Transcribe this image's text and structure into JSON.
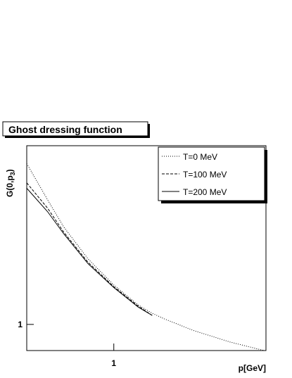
{
  "chart_data": {
    "type": "line",
    "title": "Ghost dressing function",
    "x_label": "p[GeV]",
    "y_label": {
      "main": "G(0,p",
      "sub": "3",
      "close": ")"
    },
    "x": [
      0.3,
      0.4,
      0.5,
      0.7,
      1,
      1.4,
      1.7,
      2,
      3,
      5,
      8
    ],
    "series": [
      {
        "name": "T=0 MeV",
        "color": "#000000",
        "dash": "1,2",
        "values": [
          3.95,
          2.9,
          2.3,
          1.75,
          1.4,
          1.18,
          1.1,
          1.05,
          0.95,
          0.86,
          0.8
        ]
      },
      {
        "name": "T=100 MeV",
        "color": "#000000",
        "dash": "4,2",
        "values": [
          3.35,
          2.7,
          2.2,
          1.7,
          1.38,
          1.17,
          1.08,
          null,
          null,
          null,
          null
        ]
      },
      {
        "name": "T=200 MeV",
        "color": "#000000",
        "dash": "none",
        "values": [
          3.2,
          2.62,
          2.17,
          1.68,
          1.37,
          1.16,
          1.08,
          null,
          null,
          null,
          null
        ]
      }
    ],
    "xlim": [
      0.3,
      8.2
    ],
    "ylim": [
      0.8,
      4.6
    ],
    "xticks": [
      1
    ],
    "yticks": [
      1
    ],
    "log_x": true,
    "log_y": true,
    "legend": "top-right"
  }
}
